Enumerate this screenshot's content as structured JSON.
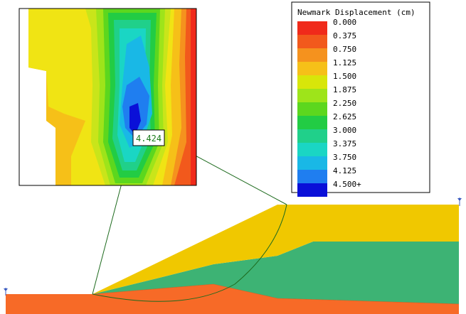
{
  "legend": {
    "title": "Newmark Displacement (cm)",
    "entries": [
      {
        "label": "0.000",
        "color": "#f02a1a"
      },
      {
        "label": "0.375",
        "color": "#f2591c"
      },
      {
        "label": "0.750",
        "color": "#f5921e"
      },
      {
        "label": "1.125",
        "color": "#f6c018"
      },
      {
        "label": "1.500",
        "color": "#d8e60a"
      },
      {
        "label": "1.875",
        "color": "#9ee41a"
      },
      {
        "label": "2.250",
        "color": "#5cd71e"
      },
      {
        "label": "2.625",
        "color": "#22cc44"
      },
      {
        "label": "3.000",
        "color": "#20d08a"
      },
      {
        "label": "3.375",
        "color": "#1ad6c4"
      },
      {
        "label": "3.750",
        "color": "#19b8e6"
      },
      {
        "label": "4.125",
        "color": "#1f7ef0"
      },
      {
        "label": "4.500+",
        "color": "#0a10d8"
      }
    ]
  },
  "contour": {
    "max_value_label": "4.424"
  },
  "materials": {
    "upper_embankment": "#f0c800",
    "core": "#3db374",
    "foundation": "#f76a27",
    "slip_line": "#1e6b1e"
  }
}
